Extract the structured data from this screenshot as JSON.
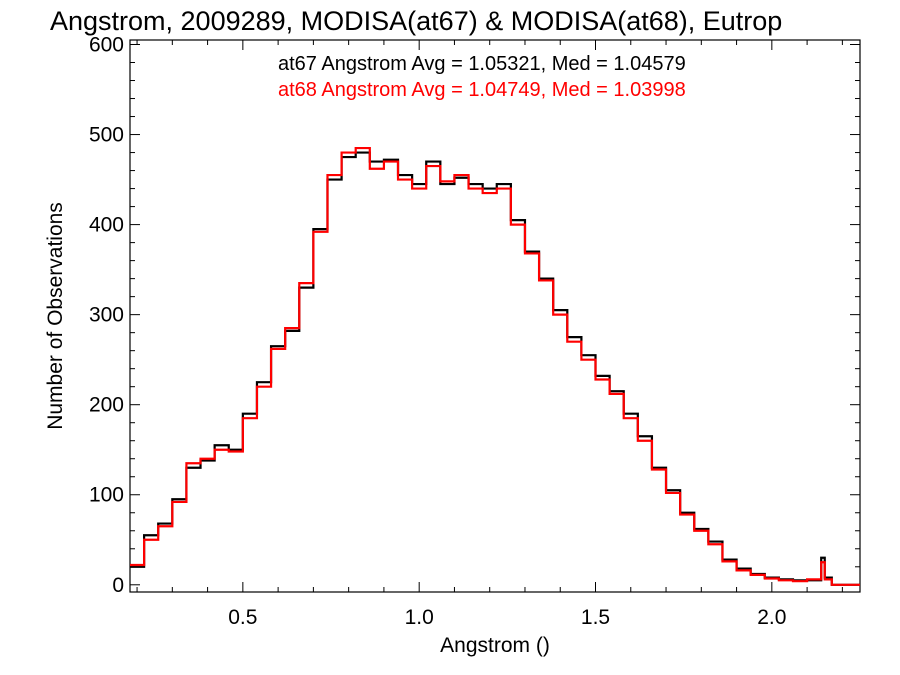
{
  "chart_data": {
    "type": "line",
    "title": "Angstrom, 2009289, MODISA(at67) & MODISA(at68), Eutrop",
    "xlabel": "Angstrom ()",
    "ylabel": "Number of Observations",
    "xlim": [
      0.18,
      2.25
    ],
    "ylim": [
      -8,
      605
    ],
    "x_ticks": [
      0.5,
      1.0,
      1.5,
      2.0
    ],
    "x_tick_labels": [
      "0.5",
      "1.0",
      "1.5",
      "2.0"
    ],
    "y_ticks": [
      0,
      100,
      200,
      300,
      400,
      500,
      600
    ],
    "y_tick_labels": [
      "0",
      "100",
      "200",
      "300",
      "400",
      "500",
      "600"
    ],
    "annotations": [
      {
        "text": "at67 Angstrom Avg = 1.05321, Med = 1.04579",
        "color": "#000000"
      },
      {
        "text": "at68 Angstrom Avg = 1.04749, Med = 1.03998",
        "color": "#ff0000"
      }
    ],
    "series": [
      {
        "name": "at67",
        "color": "#000000",
        "x": [
          0.18,
          0.22,
          0.26,
          0.3,
          0.34,
          0.38,
          0.42,
          0.46,
          0.5,
          0.54,
          0.58,
          0.62,
          0.66,
          0.7,
          0.74,
          0.78,
          0.82,
          0.86,
          0.9,
          0.94,
          0.98,
          1.02,
          1.06,
          1.1,
          1.14,
          1.18,
          1.22,
          1.26,
          1.3,
          1.34,
          1.38,
          1.42,
          1.46,
          1.5,
          1.54,
          1.58,
          1.62,
          1.66,
          1.7,
          1.74,
          1.78,
          1.82,
          1.86,
          1.9,
          1.94,
          1.98,
          2.02,
          2.06,
          2.1,
          2.14,
          2.15,
          2.17,
          2.25
        ],
        "y": [
          20,
          55,
          68,
          95,
          130,
          138,
          155,
          150,
          190,
          225,
          265,
          282,
          330,
          395,
          450,
          475,
          480,
          470,
          472,
          455,
          445,
          470,
          445,
          452,
          445,
          440,
          445,
          405,
          370,
          340,
          305,
          275,
          255,
          232,
          215,
          190,
          165,
          130,
          105,
          80,
          62,
          48,
          28,
          18,
          12,
          8,
          6,
          5,
          5,
          30,
          8,
          0,
          0
        ]
      },
      {
        "name": "at68",
        "color": "#ff0000",
        "x": [
          0.18,
          0.22,
          0.26,
          0.3,
          0.34,
          0.38,
          0.42,
          0.46,
          0.5,
          0.54,
          0.58,
          0.62,
          0.66,
          0.7,
          0.74,
          0.78,
          0.82,
          0.86,
          0.9,
          0.94,
          0.98,
          1.02,
          1.06,
          1.1,
          1.14,
          1.18,
          1.22,
          1.26,
          1.3,
          1.34,
          1.38,
          1.42,
          1.46,
          1.5,
          1.54,
          1.58,
          1.62,
          1.66,
          1.7,
          1.74,
          1.78,
          1.82,
          1.86,
          1.9,
          1.94,
          1.98,
          2.02,
          2.06,
          2.1,
          2.14,
          2.15,
          2.17,
          2.25
        ],
        "y": [
          22,
          50,
          65,
          92,
          135,
          140,
          150,
          148,
          185,
          220,
          262,
          285,
          335,
          392,
          455,
          480,
          485,
          462,
          470,
          450,
          440,
          465,
          448,
          455,
          440,
          435,
          440,
          400,
          368,
          338,
          300,
          270,
          250,
          228,
          212,
          185,
          160,
          128,
          102,
          78,
          60,
          45,
          26,
          16,
          11,
          7,
          5,
          4,
          6,
          25,
          6,
          0,
          0
        ]
      }
    ],
    "grid": false,
    "legend": "none"
  }
}
